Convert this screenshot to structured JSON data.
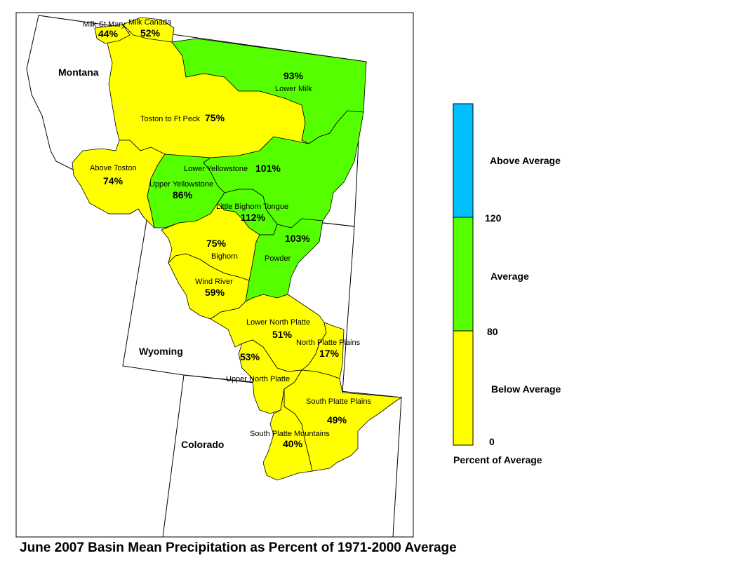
{
  "title": "June 2007 Basin Mean Precipitation as Percent of 1971-2000 Average",
  "states": {
    "montana": "Montana",
    "wyoming": "Wyoming",
    "colorado": "Colorado"
  },
  "colors": {
    "below": "#ffff00",
    "average": "#55ff00",
    "above": "#00bfff",
    "outline": "#000000"
  },
  "legend": {
    "above_label": "Above Average",
    "average_label": "Average",
    "below_label": "Below Average",
    "tick_120": "120",
    "tick_80": "80",
    "tick_0": "0",
    "caption": "Percent of Average"
  },
  "basins": [
    {
      "id": "milk-st-mary",
      "name": "Milk St Mary",
      "pct": "44%",
      "category": "below"
    },
    {
      "id": "milk-canada",
      "name": "Milk Canada",
      "pct": "52%",
      "category": "below"
    },
    {
      "id": "lower-milk",
      "name": "Lower Milk",
      "pct": "93%",
      "category": "average"
    },
    {
      "id": "toston-ft-peck",
      "name": "Toston to Ft Peck",
      "pct": "75%",
      "category": "below"
    },
    {
      "id": "above-toston",
      "name": "Above Toston",
      "pct": "74%",
      "category": "below"
    },
    {
      "id": "lower-yellowstone",
      "name": "Lower Yellowstone",
      "pct": "101%",
      "category": "average"
    },
    {
      "id": "upper-yellowstone",
      "name": "Upper Yellowstone",
      "pct": "86%",
      "category": "average"
    },
    {
      "id": "little-bighorn-tongue",
      "name": "Little Bighorn Tongue",
      "pct": "112%",
      "category": "average"
    },
    {
      "id": "powder",
      "name": "Powder",
      "pct": "103%",
      "category": "average"
    },
    {
      "id": "bighorn",
      "name": "Bighorn",
      "pct": "75%",
      "category": "below"
    },
    {
      "id": "wind-river",
      "name": "Wind River",
      "pct": "59%",
      "category": "below"
    },
    {
      "id": "lower-north-platte",
      "name": "Lower North Platte",
      "pct": "51%",
      "category": "below"
    },
    {
      "id": "north-platte-plains",
      "name": "North Platte Plains",
      "pct": "17%",
      "category": "below"
    },
    {
      "id": "upper-north-platte",
      "name": "Upper North Platte",
      "pct": "53%",
      "category": "below"
    },
    {
      "id": "south-platte-plains",
      "name": "South Platte Plains",
      "pct": "49%",
      "category": "below"
    },
    {
      "id": "south-platte-mountains",
      "name": "South Platte Mountains",
      "pct": "40%",
      "category": "below"
    }
  ]
}
